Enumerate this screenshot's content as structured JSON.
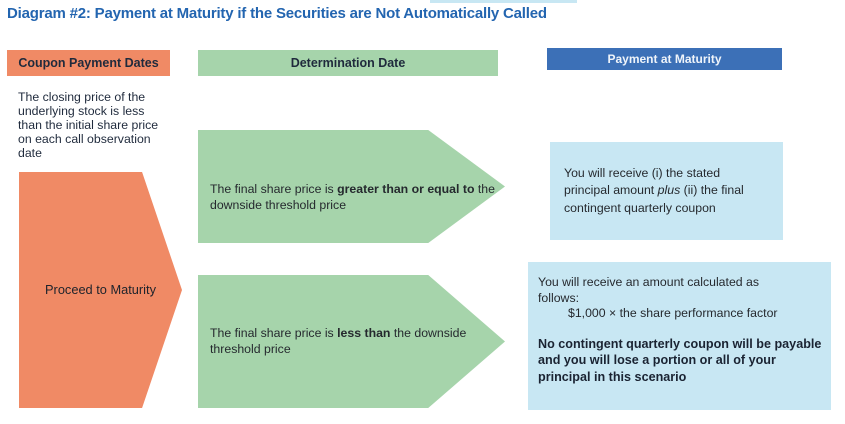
{
  "title": "Diagram #2: Payment at Maturity if the Securities are Not Automatically Called",
  "colors": {
    "title_blue": "#2365B0",
    "orange": "#F08A65",
    "green": "#A6D4AB",
    "header_blue": "#3C70B7",
    "light_blue": "#C8E7F3",
    "dark_navy": "#1F2A3C"
  },
  "columns": {
    "coupon": {
      "header": "Coupon Payment Dates"
    },
    "determination": {
      "header": "Determination Date"
    },
    "payment": {
      "header": "Payment at Maturity"
    }
  },
  "left": {
    "note": "The closing price of the underlying stock is less than the initial share price on each call observation date",
    "arrow_label": "Proceed to Maturity"
  },
  "middle": {
    "arrow1": {
      "text_before": "The final share price is ",
      "text_bold": "greater than or equal to",
      "text_after": " the downside threshold price"
    },
    "arrow2": {
      "text_before": "The final share price is ",
      "text_bold": "less than",
      "text_after": " the downside threshold price"
    }
  },
  "right": {
    "box1": {
      "text_before": "You will receive (i) the stated principal amount ",
      "text_italic": "plus",
      "text_after": " (ii) the final contingent quarterly coupon"
    },
    "box2": {
      "lead": "You will receive an amount calculated as follows:",
      "formula": "$1,000 × the share performance factor",
      "warning": "No contingent quarterly coupon will be payable and you will lose a portion or all of your principal in this scenario"
    }
  }
}
